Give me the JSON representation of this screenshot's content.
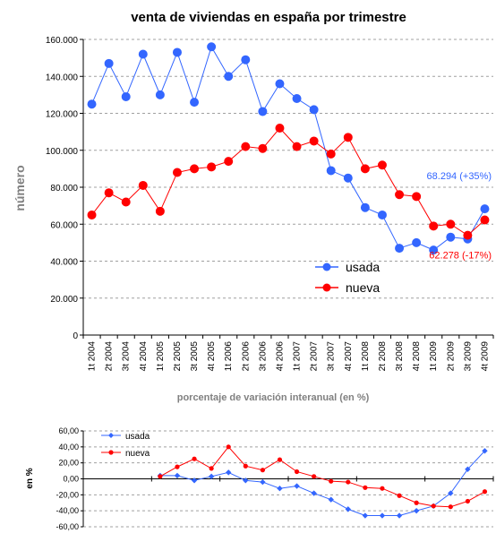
{
  "colors": {
    "usada": "#3366FF",
    "nueva": "#FF0000",
    "grid": "#A0A0A0"
  },
  "chart_data": [
    {
      "type": "line",
      "title": "venta de viviendas en españa por trimestre",
      "xlabel": "",
      "ylabel": "número",
      "ylim": [
        0,
        160000
      ],
      "ytick_labels": [
        "0",
        "20.000",
        "40.000",
        "60.000",
        "80.000",
        "100.000",
        "120.000",
        "140.000",
        "160.000"
      ],
      "yticks": [
        0,
        20000,
        40000,
        60000,
        80000,
        100000,
        120000,
        140000,
        160000
      ],
      "grid": true,
      "legend_position": "lower-middle",
      "categories": [
        "1t 2004",
        "2t 2004",
        "3t 2004",
        "4t 2004",
        "1t 2005",
        "2t 2005",
        "3t 2005",
        "4t 2005",
        "1t 2006",
        "2t 2006",
        "3t 2006",
        "4t 2006",
        "1t 2007",
        "2t 2007",
        "3t 2007",
        "4t 2007",
        "1t 2008",
        "2t 2008",
        "3t 2008",
        "4t 2008",
        "1t 2009",
        "2t 2009",
        "3t 2009",
        "4t 2009"
      ],
      "series": [
        {
          "name": "usada",
          "values": [
            125000,
            147000,
            129000,
            152000,
            130000,
            153000,
            126000,
            156000,
            140000,
            149000,
            121000,
            136000,
            128000,
            122000,
            89000,
            85000,
            69000,
            65000,
            47000,
            50000,
            46000,
            53000,
            52000,
            68294
          ]
        },
        {
          "name": "nueva",
          "values": [
            65000,
            77000,
            72000,
            81000,
            67000,
            88000,
            90000,
            91000,
            94000,
            102000,
            101000,
            112000,
            102000,
            105000,
            98000,
            107000,
            90000,
            92000,
            76000,
            75000,
            59000,
            60000,
            54000,
            62278
          ]
        }
      ],
      "annotations": [
        {
          "text": "68.294 (+35%)",
          "series": "usada"
        },
        {
          "text": "62.278 (-17%)",
          "series": "nueva"
        }
      ]
    },
    {
      "type": "line",
      "title": "porcentaje de variación interanual (en %)",
      "xlabel": "",
      "ylabel": "en %",
      "ylim": [
        -60,
        60
      ],
      "ytick_labels": [
        "-60,00",
        "-40,00",
        "-20,00",
        "0,00",
        "20,00",
        "40,00",
        "60,00"
      ],
      "yticks": [
        -60,
        -40,
        -20,
        0,
        20,
        40,
        60
      ],
      "grid": true,
      "legend_position": "top-left",
      "categories": [
        "1t 2004",
        "2t 2004",
        "3t 2004",
        "4t 2004",
        "1t 2005",
        "2t 2005",
        "3t 2005",
        "4t 2005",
        "1t 2006",
        "2t 2006",
        "3t 2006",
        "4t 2006",
        "1t 2007",
        "2t 2007",
        "3t 2007",
        "4t 2007",
        "1t 2008",
        "2t 2008",
        "3t 2008",
        "4t 2008",
        "1t 2009",
        "2t 2009",
        "3t 2009",
        "4t 2009"
      ],
      "series": [
        {
          "name": "usada",
          "values": [
            null,
            null,
            null,
            null,
            4,
            4,
            -2,
            3,
            8,
            -2,
            -4,
            -12,
            -9,
            -18,
            -26,
            -38,
            -46,
            -46,
            -46,
            -40,
            -34,
            -18,
            12,
            35
          ]
        },
        {
          "name": "nueva",
          "values": [
            null,
            null,
            null,
            null,
            3,
            15,
            25,
            13,
            40,
            16,
            11,
            24,
            9,
            3,
            -3,
            -4,
            -11,
            -12,
            -21,
            -30,
            -34,
            -35,
            -28,
            -16
          ]
        }
      ]
    }
  ]
}
